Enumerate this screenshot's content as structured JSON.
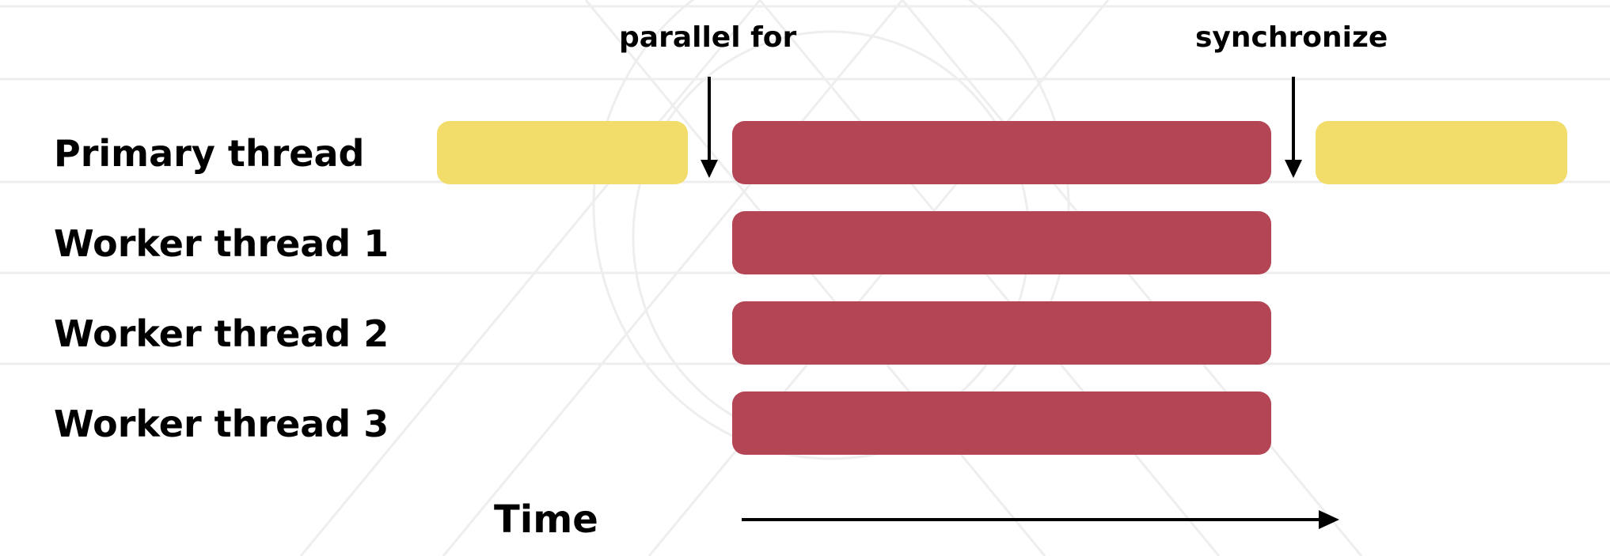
{
  "diagram": {
    "annotations": {
      "parallel_for": "parallel for",
      "synchronize": "synchronize"
    },
    "rows": [
      {
        "label": "Primary thread"
      },
      {
        "label": "Worker thread 1"
      },
      {
        "label": "Worker thread 2"
      },
      {
        "label": "Worker thread 3"
      }
    ],
    "time_label": "Time",
    "colors": {
      "serial_work": "#f2dc6a",
      "parallel_work": "#b34555",
      "arrow": "#000000"
    }
  }
}
